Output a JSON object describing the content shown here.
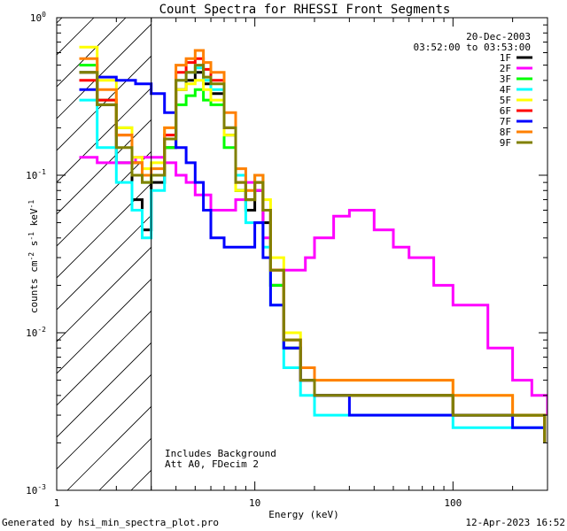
{
  "chart_data": {
    "type": "line",
    "title": "Count Spectra for RHESSI Front Segments",
    "xlabel": "Energy (keV)",
    "ylabel_parts": [
      "counts cm",
      "-2",
      " s",
      "-1",
      " keV",
      "-1"
    ],
    "xscale": "log",
    "yscale": "log",
    "xlim": [
      1,
      300
    ],
    "ylim": [
      0.001,
      1
    ],
    "x_tick_labels": [
      {
        "v": 1,
        "label": "1"
      },
      {
        "v": 10,
        "label": "10"
      },
      {
        "v": 100,
        "label": "100"
      }
    ],
    "y_tick_labels": [
      {
        "v": 1,
        "base": "10",
        "exp": "0"
      },
      {
        "v": 0.1,
        "base": "10",
        "exp": "-1"
      },
      {
        "v": 0.01,
        "base": "10",
        "exp": "-2"
      },
      {
        "v": 0.001,
        "base": "10",
        "exp": "-3"
      }
    ],
    "date": "20-Dec-2003",
    "time_range": "03:52:00 to 03:53:00",
    "annotations": [
      "Includes Background",
      "Att A0, FDecim 2"
    ],
    "hatched_below_keV": 3,
    "legend_position": "top-right",
    "series": [
      {
        "name": "1F",
        "color": "#000000",
        "points": [
          [
            1.3,
            0.45
          ],
          [
            1.6,
            0.28
          ],
          [
            2.0,
            0.12
          ],
          [
            2.4,
            0.07
          ],
          [
            2.7,
            0.045
          ],
          [
            3.0,
            0.09
          ],
          [
            3.5,
            0.15
          ],
          [
            4.0,
            0.35
          ],
          [
            4.5,
            0.4
          ],
          [
            5.0,
            0.45
          ],
          [
            5.5,
            0.38
          ],
          [
            6.0,
            0.33
          ],
          [
            7.0,
            0.18
          ],
          [
            8.0,
            0.08
          ],
          [
            9.0,
            0.06
          ],
          [
            10.0,
            0.08
          ],
          [
            11.0,
            0.05
          ],
          [
            12.0,
            0.02
          ],
          [
            14.0,
            0.008
          ],
          [
            17.0,
            0.005
          ],
          [
            20.0,
            0.004
          ],
          [
            30.0,
            0.004
          ],
          [
            50.0,
            0.004
          ],
          [
            100.0,
            0.003
          ],
          [
            200.0,
            0.003
          ],
          [
            290.0,
            0.002
          ]
        ]
      },
      {
        "name": "2F",
        "color": "#ff00ff",
        "points": [
          [
            1.3,
            0.13
          ],
          [
            1.6,
            0.12
          ],
          [
            2.0,
            0.12
          ],
          [
            2.5,
            0.13
          ],
          [
            3.0,
            0.13
          ],
          [
            3.5,
            0.12
          ],
          [
            4.0,
            0.1
          ],
          [
            4.5,
            0.09
          ],
          [
            5.0,
            0.075
          ],
          [
            6.0,
            0.06
          ],
          [
            7.0,
            0.06
          ],
          [
            8.0,
            0.07
          ],
          [
            9.0,
            0.09
          ],
          [
            10.0,
            0.08
          ],
          [
            11.0,
            0.04
          ],
          [
            12.0,
            0.025
          ],
          [
            14.0,
            0.025
          ],
          [
            16.0,
            0.025
          ],
          [
            18.0,
            0.03
          ],
          [
            20.0,
            0.04
          ],
          [
            25.0,
            0.055
          ],
          [
            30.0,
            0.06
          ],
          [
            40.0,
            0.045
          ],
          [
            50.0,
            0.035
          ],
          [
            60.0,
            0.03
          ],
          [
            80.0,
            0.02
          ],
          [
            100.0,
            0.015
          ],
          [
            150.0,
            0.008
          ],
          [
            200.0,
            0.005
          ],
          [
            250.0,
            0.004
          ],
          [
            300.0,
            0.003
          ]
        ]
      },
      {
        "name": "3F",
        "color": "#00ff00",
        "points": [
          [
            1.3,
            0.5
          ],
          [
            1.6,
            0.3
          ],
          [
            2.0,
            0.2
          ],
          [
            2.4,
            0.12
          ],
          [
            2.7,
            0.09
          ],
          [
            3.0,
            0.1
          ],
          [
            3.5,
            0.15
          ],
          [
            4.0,
            0.28
          ],
          [
            4.5,
            0.32
          ],
          [
            5.0,
            0.35
          ],
          [
            5.5,
            0.3
          ],
          [
            6.0,
            0.28
          ],
          [
            7.0,
            0.15
          ],
          [
            8.0,
            0.08
          ],
          [
            9.0,
            0.07
          ],
          [
            10.0,
            0.1
          ],
          [
            11.0,
            0.06
          ],
          [
            12.0,
            0.02
          ],
          [
            14.0,
            0.008
          ],
          [
            17.0,
            0.005
          ],
          [
            20.0,
            0.004
          ],
          [
            30.0,
            0.004
          ],
          [
            50.0,
            0.004
          ],
          [
            100.0,
            0.003
          ],
          [
            200.0,
            0.003
          ],
          [
            290.0,
            0.002
          ]
        ]
      },
      {
        "name": "4F",
        "color": "#00ffff",
        "points": [
          [
            1.3,
            0.3
          ],
          [
            1.6,
            0.15
          ],
          [
            2.0,
            0.09
          ],
          [
            2.4,
            0.06
          ],
          [
            2.7,
            0.04
          ],
          [
            3.0,
            0.08
          ],
          [
            3.5,
            0.17
          ],
          [
            4.0,
            0.4
          ],
          [
            4.5,
            0.45
          ],
          [
            5.0,
            0.48
          ],
          [
            5.5,
            0.4
          ],
          [
            6.0,
            0.35
          ],
          [
            7.0,
            0.2
          ],
          [
            8.0,
            0.1
          ],
          [
            9.0,
            0.05
          ],
          [
            10.0,
            0.05
          ],
          [
            11.0,
            0.035
          ],
          [
            12.0,
            0.015
          ],
          [
            14.0,
            0.006
          ],
          [
            17.0,
            0.004
          ],
          [
            20.0,
            0.003
          ],
          [
            30.0,
            0.003
          ],
          [
            50.0,
            0.003
          ],
          [
            100.0,
            0.0025
          ],
          [
            200.0,
            0.0025
          ],
          [
            290.0,
            0.002
          ]
        ]
      },
      {
        "name": "5F",
        "color": "#ffff00",
        "points": [
          [
            1.3,
            0.65
          ],
          [
            1.6,
            0.4
          ],
          [
            2.0,
            0.2
          ],
          [
            2.4,
            0.13
          ],
          [
            2.7,
            0.11
          ],
          [
            3.0,
            0.12
          ],
          [
            3.5,
            0.2
          ],
          [
            4.0,
            0.35
          ],
          [
            4.5,
            0.38
          ],
          [
            5.0,
            0.4
          ],
          [
            5.5,
            0.35
          ],
          [
            6.0,
            0.3
          ],
          [
            7.0,
            0.18
          ],
          [
            8.0,
            0.08
          ],
          [
            9.0,
            0.08
          ],
          [
            10.0,
            0.09
          ],
          [
            11.0,
            0.07
          ],
          [
            12.0,
            0.03
          ],
          [
            14.0,
            0.01
          ],
          [
            17.0,
            0.006
          ],
          [
            20.0,
            0.005
          ],
          [
            30.0,
            0.005
          ],
          [
            50.0,
            0.005
          ],
          [
            100.0,
            0.004
          ],
          [
            200.0,
            0.003
          ],
          [
            290.0,
            0.002
          ]
        ]
      },
      {
        "name": "6F",
        "color": "#ff0000",
        "points": [
          [
            1.3,
            0.4
          ],
          [
            1.6,
            0.3
          ],
          [
            2.0,
            0.18
          ],
          [
            2.4,
            0.12
          ],
          [
            2.7,
            0.1
          ],
          [
            3.0,
            0.1
          ],
          [
            3.5,
            0.18
          ],
          [
            4.0,
            0.45
          ],
          [
            4.5,
            0.52
          ],
          [
            5.0,
            0.55
          ],
          [
            5.5,
            0.47
          ],
          [
            6.0,
            0.4
          ],
          [
            7.0,
            0.2
          ],
          [
            8.0,
            0.09
          ],
          [
            9.0,
            0.07
          ],
          [
            10.0,
            0.09
          ],
          [
            11.0,
            0.06
          ],
          [
            12.0,
            0.025
          ],
          [
            14.0,
            0.009
          ],
          [
            17.0,
            0.005
          ],
          [
            20.0,
            0.004
          ],
          [
            30.0,
            0.004
          ],
          [
            50.0,
            0.004
          ],
          [
            100.0,
            0.003
          ],
          [
            200.0,
            0.003
          ],
          [
            290.0,
            0.002
          ]
        ]
      },
      {
        "name": "7F",
        "color": "#0000ff",
        "points": [
          [
            1.3,
            0.35
          ],
          [
            1.6,
            0.42
          ],
          [
            2.0,
            0.4
          ],
          [
            2.5,
            0.38
          ],
          [
            3.0,
            0.33
          ],
          [
            3.5,
            0.25
          ],
          [
            4.0,
            0.15
          ],
          [
            4.5,
            0.12
          ],
          [
            5.0,
            0.09
          ],
          [
            5.5,
            0.06
          ],
          [
            6.0,
            0.04
          ],
          [
            7.0,
            0.035
          ],
          [
            8.0,
            0.035
          ],
          [
            9.0,
            0.035
          ],
          [
            10.0,
            0.05
          ],
          [
            11.0,
            0.03
          ],
          [
            12.0,
            0.015
          ],
          [
            14.0,
            0.008
          ],
          [
            17.0,
            0.005
          ],
          [
            20.0,
            0.004
          ],
          [
            30.0,
            0.003
          ],
          [
            50.0,
            0.003
          ],
          [
            100.0,
            0.003
          ],
          [
            200.0,
            0.0025
          ],
          [
            290.0,
            0.002
          ]
        ]
      },
      {
        "name": "8F",
        "color": "#ff8000",
        "points": [
          [
            1.3,
            0.55
          ],
          [
            1.6,
            0.35
          ],
          [
            2.0,
            0.18
          ],
          [
            2.4,
            0.12
          ],
          [
            2.7,
            0.1
          ],
          [
            3.0,
            0.11
          ],
          [
            3.5,
            0.2
          ],
          [
            4.0,
            0.5
          ],
          [
            4.5,
            0.55
          ],
          [
            5.0,
            0.62
          ],
          [
            5.5,
            0.52
          ],
          [
            6.0,
            0.45
          ],
          [
            7.0,
            0.25
          ],
          [
            8.0,
            0.11
          ],
          [
            9.0,
            0.08
          ],
          [
            10.0,
            0.1
          ],
          [
            11.0,
            0.06
          ],
          [
            12.0,
            0.025
          ],
          [
            14.0,
            0.009
          ],
          [
            17.0,
            0.006
          ],
          [
            20.0,
            0.005
          ],
          [
            30.0,
            0.005
          ],
          [
            50.0,
            0.005
          ],
          [
            100.0,
            0.004
          ],
          [
            200.0,
            0.003
          ],
          [
            290.0,
            0.002
          ]
        ]
      },
      {
        "name": "9F",
        "color": "#808000",
        "points": [
          [
            1.3,
            0.45
          ],
          [
            1.6,
            0.28
          ],
          [
            2.0,
            0.15
          ],
          [
            2.4,
            0.1
          ],
          [
            2.7,
            0.09
          ],
          [
            3.0,
            0.1
          ],
          [
            3.5,
            0.17
          ],
          [
            4.0,
            0.4
          ],
          [
            4.5,
            0.45
          ],
          [
            5.0,
            0.5
          ],
          [
            5.5,
            0.42
          ],
          [
            6.0,
            0.38
          ],
          [
            7.0,
            0.2
          ],
          [
            8.0,
            0.09
          ],
          [
            9.0,
            0.07
          ],
          [
            10.0,
            0.09
          ],
          [
            11.0,
            0.06
          ],
          [
            12.0,
            0.025
          ],
          [
            14.0,
            0.009
          ],
          [
            17.0,
            0.005
          ],
          [
            20.0,
            0.004
          ],
          [
            30.0,
            0.004
          ],
          [
            50.0,
            0.004
          ],
          [
            100.0,
            0.003
          ],
          [
            200.0,
            0.003
          ],
          [
            290.0,
            0.002
          ]
        ]
      }
    ]
  },
  "footer": {
    "generated_by": "Generated by hsi_min_spectra_plot.pro",
    "timestamp": "12-Apr-2023 16:52"
  }
}
